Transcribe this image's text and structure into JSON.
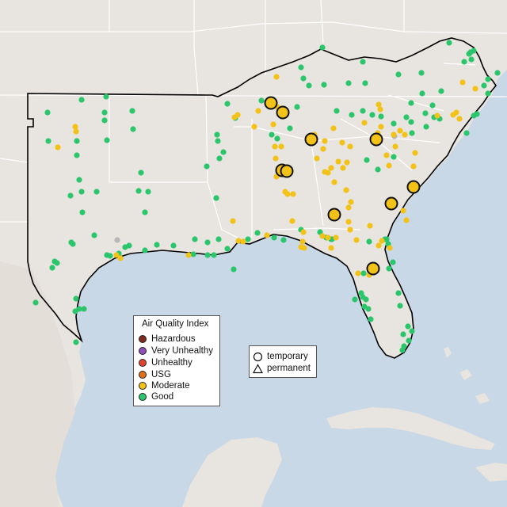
{
  "legend": {
    "title": "Air Quality Index",
    "items": [
      {
        "label": "Hazardous",
        "color": "#7e2a1e",
        "name": "legend-item-hazardous"
      },
      {
        "label": "Very Unhealthy",
        "color": "#8f4fb7",
        "name": "legend-item-very-unhealthy"
      },
      {
        "label": "Unhealthy",
        "color": "#e0442e",
        "name": "legend-item-unhealthy"
      },
      {
        "label": "USG",
        "color": "#e06f17",
        "name": "legend-item-usg"
      },
      {
        "label": "Moderate",
        "color": "#f2c218",
        "name": "legend-item-moderate"
      },
      {
        "label": "Good",
        "color": "#2bc66b",
        "name": "legend-item-good"
      }
    ]
  },
  "shape_legend": {
    "temporary_label": "temporary",
    "temporary_icon": "circle-icon",
    "permanent_label": "permanent",
    "permanent_icon": "triangle-icon"
  },
  "colors": {
    "water": "#c9d8e6",
    "land": "#e8e4df",
    "region_outline": "#000000",
    "state_border": "#ffffff",
    "good": "#2bc66b",
    "moderate": "#f2c218",
    "no_data": "#b8b8b8"
  }
}
